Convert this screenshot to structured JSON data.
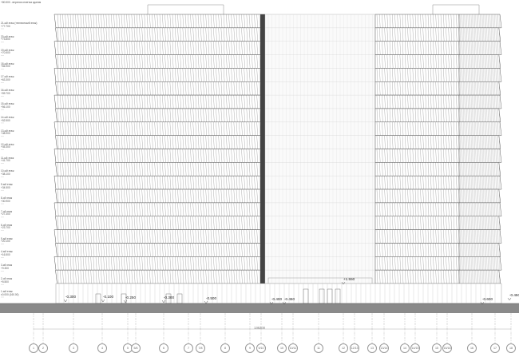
{
  "top_note": "+80.500 - верхняя отметка здания",
  "levels": [
    {
      "name": "21-ый этаж (технический этаж)",
      "mark": "+77.700"
    },
    {
      "name": "20-ый этаж",
      "mark": "+73.800"
    },
    {
      "name": "19-ый этаж",
      "mark": "+70.500"
    },
    {
      "name": "18-ый этаж",
      "mark": "+66.900"
    },
    {
      "name": "17-ый этаж",
      "mark": "+63.300"
    },
    {
      "name": "16-ый этаж",
      "mark": "+59.700"
    },
    {
      "name": "15-ый этаж",
      "mark": "+56.100"
    },
    {
      "name": "14-ый этаж",
      "mark": "+52.500"
    },
    {
      "name": "13-ый этаж",
      "mark": "+48.900"
    },
    {
      "name": "12-ый этаж",
      "mark": "+45.300"
    },
    {
      "name": "11-ый этаж",
      "mark": "+41.700"
    },
    {
      "name": "10-ый этаж",
      "mark": "+38.100"
    },
    {
      "name": "9-ый этаж",
      "mark": "+34.500"
    },
    {
      "name": "8-ой этаж",
      "mark": "+30.900"
    },
    {
      "name": "7-ой этаж",
      "mark": "+27.300"
    },
    {
      "name": "6-ой этаж",
      "mark": "+23.700"
    },
    {
      "name": "5-ый этаж",
      "mark": "+20.100"
    },
    {
      "name": "4-ый этаж",
      "mark": "+16.500"
    },
    {
      "name": "3-ий этаж",
      "mark": "+9.300"
    },
    {
      "name": "2-ой этаж",
      "mark": "+5.500"
    },
    {
      "name": "1-ый этаж",
      "mark": "±0.000 (160.00)"
    }
  ],
  "spot_elevations": [
    "-0.300",
    "-0.100",
    "-0.250",
    "-0.300",
    "-0.500",
    "-0.400",
    "-0.450",
    "+1.550",
    "-0.600",
    "-0.450"
  ],
  "overall_dimension": "136200",
  "axes": [
    "1",
    "2",
    "3",
    "4",
    "5",
    "5/6",
    "6",
    "7",
    "7/8",
    "8",
    "9",
    "9/10",
    "10",
    "10/11",
    "11",
    "12",
    "12/13",
    "13",
    "13/14",
    "14",
    "14/15",
    "15",
    "15/16",
    "16",
    "17",
    "18"
  ],
  "colors": {
    "line": "#555555",
    "ground": "#8a8a8a",
    "fin_dark": "#444444"
  }
}
